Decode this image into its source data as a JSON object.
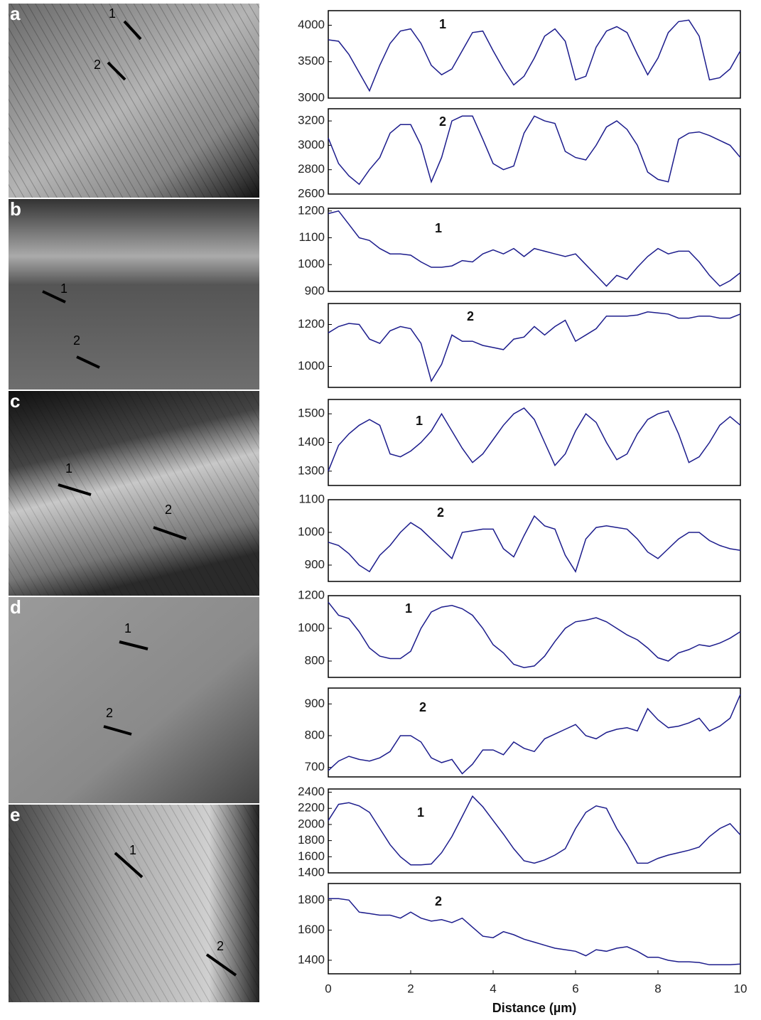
{
  "panels": [
    {
      "letter": "a",
      "labels": [
        "1",
        "2"
      ]
    },
    {
      "letter": "b",
      "labels": [
        "1",
        "2"
      ]
    },
    {
      "letter": "c",
      "labels": [
        "1",
        "2"
      ]
    },
    {
      "letter": "d",
      "labels": [
        "1",
        "2"
      ]
    },
    {
      "letter": "e",
      "labels": [
        "1",
        "2"
      ]
    }
  ],
  "chart_data": [
    {
      "type": "line",
      "xlim": [
        0,
        10
      ],
      "ylim": [
        3000,
        4200
      ],
      "yticks": [
        3000,
        3500,
        4000
      ],
      "x": [
        0,
        0.25,
        0.5,
        0.75,
        1,
        1.25,
        1.5,
        1.75,
        2,
        2.25,
        2.5,
        2.75,
        3,
        3.25,
        3.5,
        3.75,
        4,
        4.25,
        4.5,
        4.75,
        5,
        5.25,
        5.5,
        5.75,
        6,
        6.25,
        6.5,
        6.75,
        7,
        7.25,
        7.5,
        7.75,
        8,
        8.25,
        8.5,
        8.75,
        9,
        9.25,
        9.5,
        9.75,
        10
      ],
      "series": [
        {
          "name": "1",
          "color": "#1c1c8c",
          "values": [
            3800,
            3780,
            3600,
            3350,
            3100,
            3450,
            3750,
            3920,
            3950,
            3750,
            3450,
            3320,
            3400,
            3650,
            3900,
            3920,
            3650,
            3400,
            3180,
            3300,
            3550,
            3850,
            3950,
            3780,
            3250,
            3300,
            3700,
            3920,
            3980,
            3900,
            3600,
            3320,
            3550,
            3900,
            4050,
            4070,
            3850,
            3250,
            3280,
            3400,
            3650
          ]
        }
      ]
    },
    {
      "type": "line",
      "xlim": [
        0,
        10
      ],
      "ylim": [
        2600,
        3300
      ],
      "yticks": [
        2600,
        2800,
        3000,
        3200
      ],
      "x": [
        0,
        0.25,
        0.5,
        0.75,
        1,
        1.25,
        1.5,
        1.75,
        2,
        2.25,
        2.5,
        2.75,
        3,
        3.25,
        3.5,
        3.75,
        4,
        4.25,
        4.5,
        4.75,
        5,
        5.25,
        5.5,
        5.75,
        6,
        6.25,
        6.5,
        6.75,
        7,
        7.25,
        7.5,
        7.75,
        8,
        8.25,
        8.5,
        8.75,
        9,
        9.25,
        9.5,
        9.75,
        10
      ],
      "series": [
        {
          "name": "2",
          "color": "#1c1c8c",
          "values": [
            3060,
            2850,
            2750,
            2680,
            2800,
            2900,
            3100,
            3170,
            3170,
            3000,
            2700,
            2900,
            3200,
            3240,
            3240,
            3050,
            2850,
            2800,
            2830,
            3100,
            3240,
            3200,
            3180,
            2950,
            2900,
            2880,
            3000,
            3150,
            3200,
            3130,
            3000,
            2780,
            2720,
            2700,
            3050,
            3100,
            3110,
            3080,
            3040,
            3000,
            2900
          ]
        }
      ]
    },
    {
      "type": "line",
      "xlim": [
        0,
        10
      ],
      "ylim": [
        900,
        1210
      ],
      "yticks": [
        900,
        1000,
        1100,
        1200
      ],
      "x": [
        0,
        0.25,
        0.5,
        0.75,
        1,
        1.25,
        1.5,
        1.75,
        2,
        2.25,
        2.5,
        2.75,
        3,
        3.25,
        3.5,
        3.75,
        4,
        4.25,
        4.5,
        4.75,
        5,
        5.25,
        5.5,
        5.75,
        6,
        6.25,
        6.5,
        6.75,
        7,
        7.25,
        7.5,
        7.75,
        8,
        8.25,
        8.5,
        8.75,
        9,
        9.25,
        9.5,
        9.75,
        10
      ],
      "series": [
        {
          "name": "1",
          "color": "#1c1c8c",
          "values": [
            1190,
            1200,
            1150,
            1100,
            1090,
            1060,
            1040,
            1040,
            1035,
            1010,
            990,
            990,
            995,
            1015,
            1010,
            1040,
            1055,
            1040,
            1060,
            1030,
            1060,
            1050,
            1040,
            1030,
            1040,
            1000,
            960,
            920,
            960,
            945,
            990,
            1030,
            1060,
            1040,
            1050,
            1050,
            1010,
            960,
            920,
            940,
            970
          ]
        }
      ]
    },
    {
      "type": "line",
      "xlim": [
        0,
        10
      ],
      "ylim": [
        900,
        1300
      ],
      "yticks": [
        1000,
        1200
      ],
      "x": [
        0,
        0.25,
        0.5,
        0.75,
        1,
        1.25,
        1.5,
        1.75,
        2,
        2.25,
        2.5,
        2.75,
        3,
        3.25,
        3.5,
        3.75,
        4,
        4.25,
        4.5,
        4.75,
        5,
        5.25,
        5.5,
        5.75,
        6,
        6.25,
        6.5,
        6.75,
        7,
        7.25,
        7.5,
        7.75,
        8,
        8.25,
        8.5,
        8.75,
        9,
        9.25,
        9.5,
        9.75,
        10
      ],
      "series": [
        {
          "name": "2",
          "color": "#1c1c8c",
          "values": [
            1160,
            1190,
            1205,
            1200,
            1130,
            1110,
            1170,
            1190,
            1180,
            1110,
            930,
            1010,
            1150,
            1120,
            1120,
            1100,
            1090,
            1080,
            1130,
            1140,
            1190,
            1150,
            1190,
            1220,
            1120,
            1150,
            1180,
            1240,
            1240,
            1240,
            1245,
            1260,
            1255,
            1250,
            1230,
            1230,
            1240,
            1240,
            1230,
            1230,
            1250
          ]
        }
      ]
    },
    {
      "type": "line",
      "xlim": [
        0,
        10
      ],
      "ylim": [
        1250,
        1550
      ],
      "yticks": [
        1300,
        1400,
        1500
      ],
      "x": [
        0,
        0.25,
        0.5,
        0.75,
        1,
        1.25,
        1.5,
        1.75,
        2,
        2.25,
        2.5,
        2.75,
        3,
        3.25,
        3.5,
        3.75,
        4,
        4.25,
        4.5,
        4.75,
        5,
        5.25,
        5.5,
        5.75,
        6,
        6.25,
        6.5,
        6.75,
        7,
        7.25,
        7.5,
        7.75,
        8,
        8.25,
        8.5,
        8.75,
        9,
        9.25,
        9.5,
        9.75,
        10
      ],
      "series": [
        {
          "name": "1",
          "color": "#1c1c8c",
          "values": [
            1300,
            1390,
            1430,
            1460,
            1480,
            1460,
            1360,
            1350,
            1370,
            1400,
            1440,
            1500,
            1440,
            1380,
            1330,
            1360,
            1410,
            1460,
            1500,
            1520,
            1480,
            1400,
            1320,
            1360,
            1440,
            1500,
            1470,
            1400,
            1340,
            1360,
            1430,
            1480,
            1500,
            1510,
            1430,
            1330,
            1350,
            1400,
            1460,
            1490,
            1460
          ]
        }
      ]
    },
    {
      "type": "line",
      "xlim": [
        0,
        10
      ],
      "ylim": [
        850,
        1100
      ],
      "yticks": [
        900,
        1000,
        1100
      ],
      "x": [
        0,
        0.25,
        0.5,
        0.75,
        1,
        1.25,
        1.5,
        1.75,
        2,
        2.25,
        2.5,
        2.75,
        3,
        3.25,
        3.5,
        3.75,
        4,
        4.25,
        4.5,
        4.75,
        5,
        5.25,
        5.5,
        5.75,
        6,
        6.25,
        6.5,
        6.75,
        7,
        7.25,
        7.5,
        7.75,
        8,
        8.25,
        8.5,
        8.75,
        9,
        9.25,
        9.5,
        9.75,
        10
      ],
      "series": [
        {
          "name": "2",
          "color": "#1c1c8c",
          "values": [
            970,
            960,
            935,
            900,
            880,
            930,
            960,
            1000,
            1030,
            1010,
            980,
            950,
            920,
            1000,
            1005,
            1010,
            1010,
            950,
            925,
            990,
            1050,
            1020,
            1010,
            930,
            880,
            980,
            1015,
            1020,
            1015,
            1010,
            980,
            940,
            920,
            950,
            980,
            1000,
            1000,
            975,
            960,
            950,
            945
          ]
        }
      ]
    },
    {
      "type": "line",
      "xlim": [
        0,
        10
      ],
      "ylim": [
        700,
        1200
      ],
      "yticks": [
        800,
        1000,
        1200
      ],
      "x": [
        0,
        0.25,
        0.5,
        0.75,
        1,
        1.25,
        1.5,
        1.75,
        2,
        2.25,
        2.5,
        2.75,
        3,
        3.25,
        3.5,
        3.75,
        4,
        4.25,
        4.5,
        4.75,
        5,
        5.25,
        5.5,
        5.75,
        6,
        6.25,
        6.5,
        6.75,
        7,
        7.25,
        7.5,
        7.75,
        8,
        8.25,
        8.5,
        8.75,
        9,
        9.25,
        9.5,
        9.75,
        10
      ],
      "series": [
        {
          "name": "1",
          "color": "#1c1c8c",
          "values": [
            1160,
            1080,
            1060,
            980,
            880,
            830,
            815,
            815,
            860,
            1000,
            1100,
            1130,
            1140,
            1120,
            1080,
            1000,
            900,
            850,
            780,
            760,
            770,
            830,
            920,
            1000,
            1040,
            1050,
            1065,
            1040,
            1000,
            960,
            930,
            880,
            820,
            800,
            850,
            870,
            900,
            890,
            910,
            940,
            980
          ]
        }
      ]
    },
    {
      "type": "line",
      "xlim": [
        0,
        10
      ],
      "ylim": [
        670,
        950
      ],
      "yticks": [
        700,
        800,
        900
      ],
      "x": [
        0,
        0.25,
        0.5,
        0.75,
        1,
        1.25,
        1.5,
        1.75,
        2,
        2.25,
        2.5,
        2.75,
        3,
        3.25,
        3.5,
        3.75,
        4,
        4.25,
        4.5,
        4.75,
        5,
        5.25,
        5.5,
        5.75,
        6,
        6.25,
        6.5,
        6.75,
        7,
        7.25,
        7.5,
        7.75,
        8,
        8.25,
        8.5,
        8.75,
        9,
        9.25,
        9.5,
        9.75,
        10
      ],
      "series": [
        {
          "name": "2",
          "color": "#1c1c8c",
          "values": [
            690,
            720,
            735,
            725,
            720,
            730,
            750,
            800,
            800,
            780,
            730,
            715,
            725,
            680,
            710,
            755,
            755,
            740,
            780,
            760,
            750,
            790,
            805,
            820,
            835,
            800,
            790,
            810,
            820,
            825,
            815,
            885,
            850,
            825,
            830,
            840,
            855,
            815,
            830,
            855,
            930
          ]
        }
      ]
    },
    {
      "type": "line",
      "xlim": [
        0,
        10
      ],
      "ylim": [
        1400,
        2440
      ],
      "yticks": [
        1400,
        1600,
        1800,
        2000,
        2200,
        2400
      ],
      "x": [
        0,
        0.25,
        0.5,
        0.75,
        1,
        1.25,
        1.5,
        1.75,
        2,
        2.25,
        2.5,
        2.75,
        3,
        3.25,
        3.5,
        3.75,
        4,
        4.25,
        4.5,
        4.75,
        5,
        5.25,
        5.5,
        5.75,
        6,
        6.25,
        6.5,
        6.75,
        7,
        7.25,
        7.5,
        7.75,
        8,
        8.25,
        8.5,
        8.75,
        9,
        9.25,
        9.5,
        9.75,
        10
      ],
      "series": [
        {
          "name": "1",
          "color": "#1c1c8c",
          "values": [
            2050,
            2250,
            2270,
            2230,
            2150,
            1950,
            1750,
            1600,
            1500,
            1500,
            1510,
            1650,
            1850,
            2100,
            2350,
            2220,
            2050,
            1880,
            1700,
            1550,
            1520,
            1560,
            1620,
            1700,
            1950,
            2150,
            2230,
            2200,
            1950,
            1750,
            1520,
            1520,
            1580,
            1620,
            1650,
            1680,
            1720,
            1850,
            1950,
            2010,
            1870
          ]
        }
      ]
    },
    {
      "type": "line",
      "xlim": [
        0,
        10
      ],
      "ylim": [
        1310,
        1910
      ],
      "yticks": [
        1400,
        1600,
        1800
      ],
      "xticks": [
        0,
        2,
        4,
        6,
        8,
        10
      ],
      "xlabel": "Distance (µm)",
      "x": [
        0,
        0.25,
        0.5,
        0.75,
        1,
        1.25,
        1.5,
        1.75,
        2,
        2.25,
        2.5,
        2.75,
        3,
        3.25,
        3.5,
        3.75,
        4,
        4.25,
        4.5,
        4.75,
        5,
        5.25,
        5.5,
        5.75,
        6,
        6.25,
        6.5,
        6.75,
        7,
        7.25,
        7.5,
        7.75,
        8,
        8.25,
        8.5,
        8.75,
        9,
        9.25,
        9.5,
        9.75,
        10
      ],
      "series": [
        {
          "name": "2",
          "color": "#1c1c8c",
          "values": [
            1810,
            1810,
            1800,
            1720,
            1710,
            1700,
            1700,
            1680,
            1720,
            1680,
            1660,
            1670,
            1650,
            1680,
            1620,
            1560,
            1550,
            1590,
            1570,
            1540,
            1520,
            1500,
            1480,
            1470,
            1460,
            1430,
            1470,
            1460,
            1480,
            1490,
            1460,
            1420,
            1420,
            1400,
            1390,
            1390,
            1385,
            1370,
            1370,
            1370,
            1375
          ]
        }
      ]
    }
  ]
}
